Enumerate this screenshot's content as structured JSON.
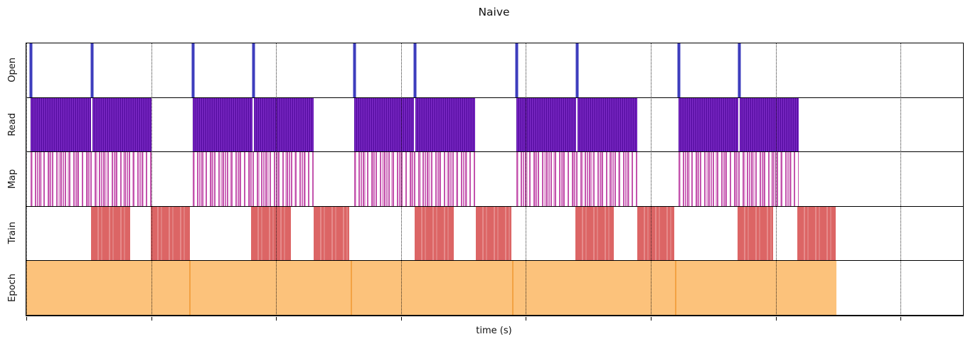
{
  "chart_data": {
    "type": "timeline",
    "title": "Naive",
    "xlabel": "time (s)",
    "x_range": [
      0,
      7.5
    ],
    "gridlines": [
      0,
      1,
      2,
      3,
      4,
      5,
      6,
      7
    ],
    "tracks": [
      "Open",
      "Read",
      "Map",
      "Train",
      "Epoch"
    ],
    "open_events": [
      0.034,
      0.524,
      1.332,
      1.816,
      2.625,
      3.109,
      3.923,
      4.407,
      5.221,
      5.705
    ],
    "read_segments": [
      [
        0.034,
        0.518
      ],
      [
        0.53,
        1.002
      ],
      [
        1.332,
        1.811
      ],
      [
        1.822,
        2.3
      ],
      [
        2.625,
        3.103
      ],
      [
        3.115,
        3.593
      ],
      [
        3.923,
        4.401
      ],
      [
        4.413,
        4.891
      ],
      [
        5.221,
        5.699
      ],
      [
        5.711,
        6.184
      ]
    ],
    "map_segments": [
      [
        0.034,
        1.002
      ],
      [
        1.332,
        2.3
      ],
      [
        2.625,
        3.593
      ],
      [
        3.923,
        4.891
      ],
      [
        5.221,
        6.184
      ]
    ],
    "train_segments": [
      [
        0.518,
        0.831
      ],
      [
        0.996,
        1.31
      ],
      [
        1.799,
        2.118
      ],
      [
        2.3,
        2.585
      ],
      [
        3.109,
        3.422
      ],
      [
        3.598,
        3.883
      ],
      [
        4.396,
        4.703
      ],
      [
        4.891,
        5.187
      ],
      [
        5.694,
        5.979
      ],
      [
        6.173,
        6.48
      ]
    ],
    "epoch_segments": [
      [
        0.0,
        1.304
      ],
      [
        1.304,
        2.596
      ],
      [
        2.596,
        3.889
      ],
      [
        3.889,
        5.193
      ],
      [
        5.193,
        6.486
      ]
    ],
    "colors": {
      "open": "#3d3dbd",
      "read": "#6a1bb4",
      "map": "#c353ad",
      "train": "#dc6565",
      "epoch": "#fcc27b",
      "epoch_divider": "#f3a243",
      "grid": "#0a0a0a"
    }
  }
}
